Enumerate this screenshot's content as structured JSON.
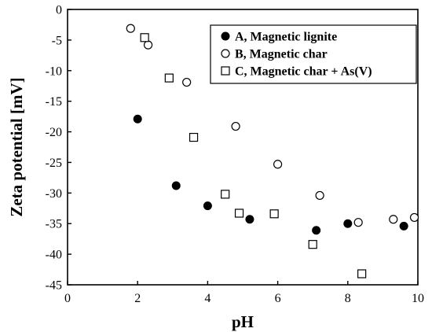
{
  "chart_data": {
    "type": "scatter",
    "xlabel": "pH",
    "ylabel": "Zeta potential [mV]",
    "xlim": [
      0,
      10
    ],
    "ylim": [
      -45,
      0
    ],
    "x_ticks": [
      0,
      2,
      4,
      6,
      8,
      10
    ],
    "y_ticks": [
      0,
      -5,
      -10,
      -15,
      -20,
      -25,
      -30,
      -35,
      -40,
      -45
    ],
    "grid": false,
    "legend_position": "top-right",
    "series": [
      {
        "name": "A, Magnetic lignite",
        "marker": "filled-circle",
        "color": "#000000",
        "points": [
          {
            "x": 2.0,
            "y": -17.9
          },
          {
            "x": 3.1,
            "y": -28.8
          },
          {
            "x": 4.0,
            "y": -32.1
          },
          {
            "x": 5.2,
            "y": -34.3
          },
          {
            "x": 7.1,
            "y": -36.1
          },
          {
            "x": 8.0,
            "y": -35.0
          },
          {
            "x": 9.6,
            "y": -35.4
          }
        ]
      },
      {
        "name": "B, Magnetic char",
        "marker": "open-circle",
        "color": "#000000",
        "points": [
          {
            "x": 1.8,
            "y": -3.1
          },
          {
            "x": 2.3,
            "y": -5.8
          },
          {
            "x": 3.4,
            "y": -11.9
          },
          {
            "x": 4.8,
            "y": -19.1
          },
          {
            "x": 6.0,
            "y": -25.3
          },
          {
            "x": 7.2,
            "y": -30.4
          },
          {
            "x": 8.3,
            "y": -34.8
          },
          {
            "x": 9.3,
            "y": -34.3
          },
          {
            "x": 9.9,
            "y": -34.0
          }
        ]
      },
      {
        "name": "C, Magnetic char + As(V)",
        "marker": "open-square",
        "color": "#000000",
        "points": [
          {
            "x": 2.2,
            "y": -4.6
          },
          {
            "x": 2.9,
            "y": -11.2
          },
          {
            "x": 3.6,
            "y": -20.9
          },
          {
            "x": 4.5,
            "y": -30.2
          },
          {
            "x": 4.9,
            "y": -33.3
          },
          {
            "x": 5.9,
            "y": -33.4
          },
          {
            "x": 7.0,
            "y": -38.4
          },
          {
            "x": 8.4,
            "y": -43.2
          }
        ]
      }
    ]
  }
}
